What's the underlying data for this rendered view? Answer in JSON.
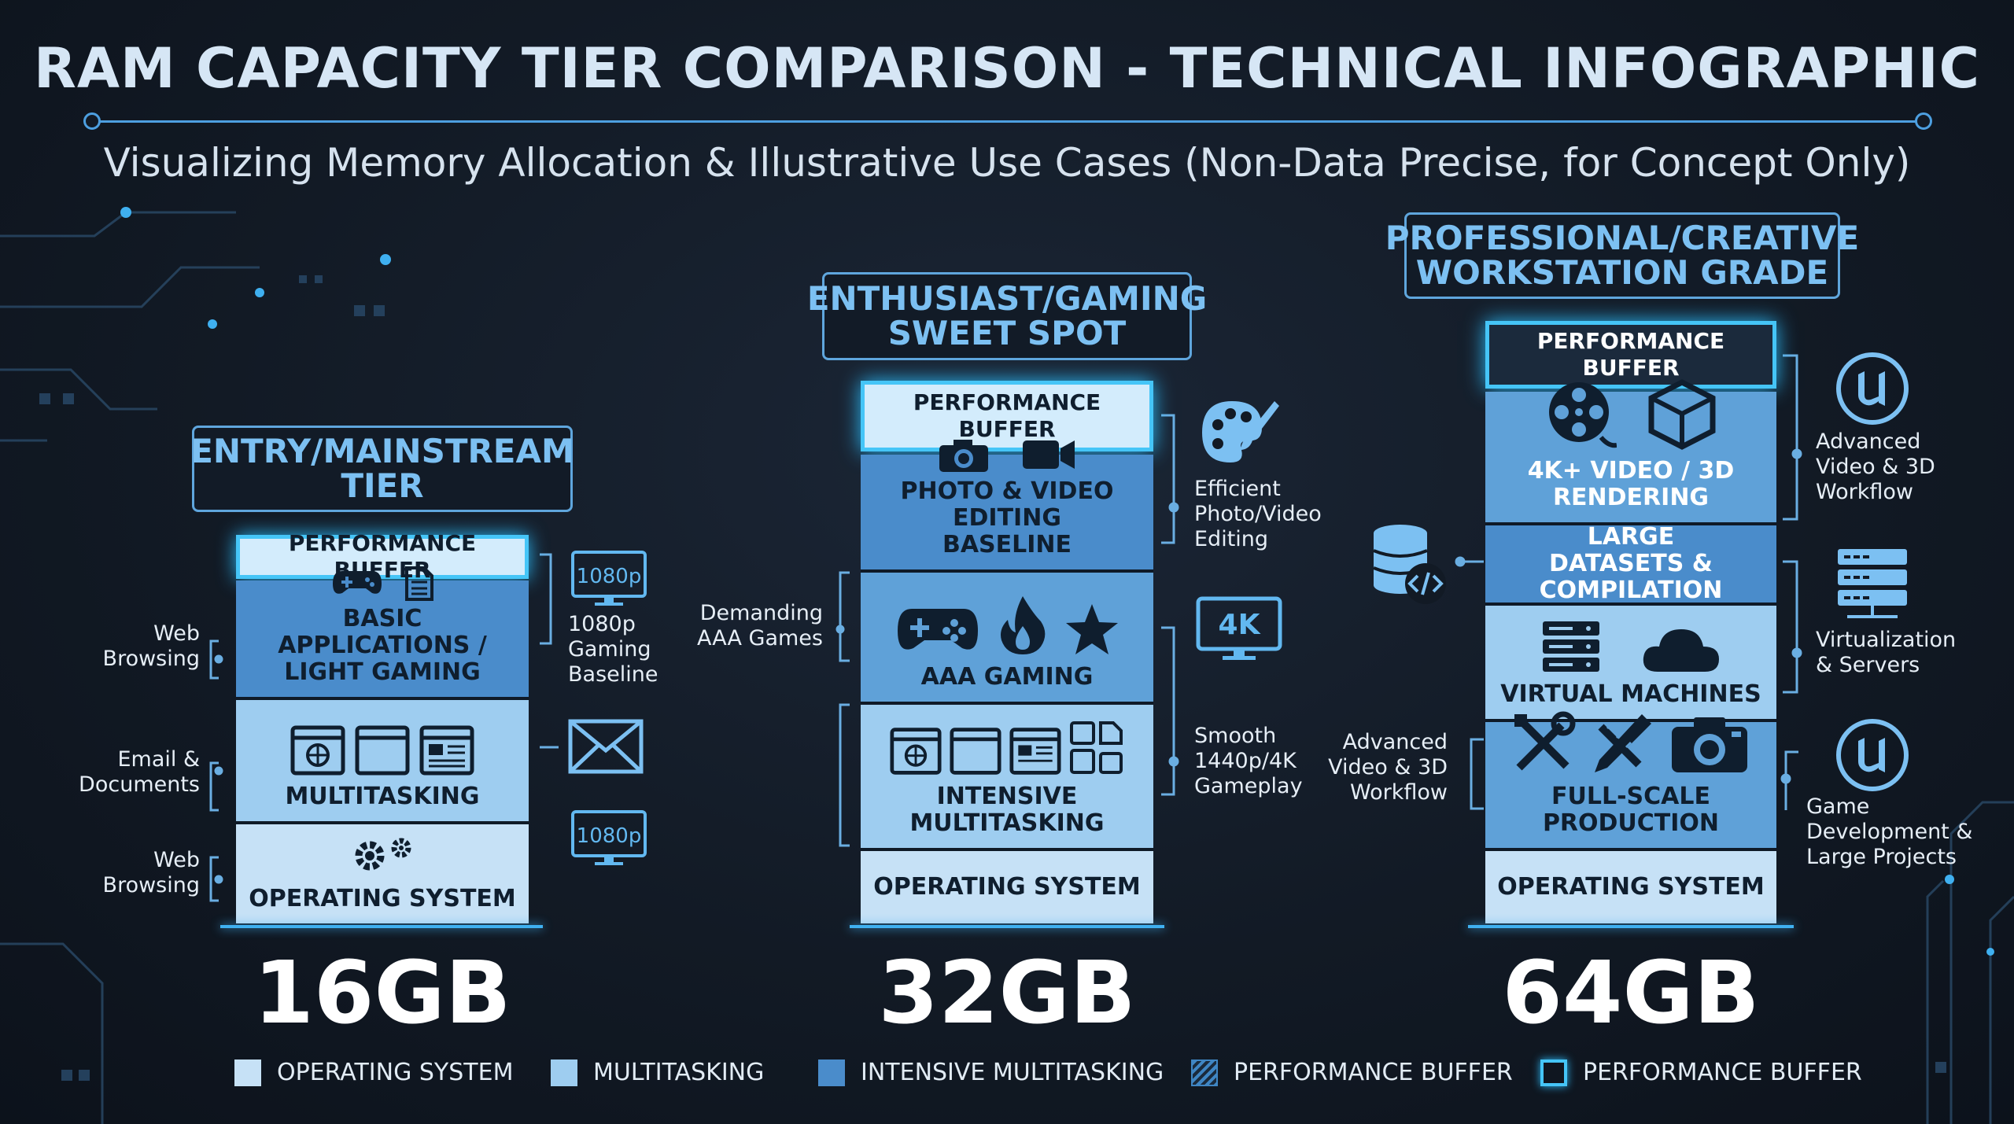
{
  "title": "RAM CAPACITY TIER COMPARISON - TECHNICAL INFOGRAPHIC",
  "subtitle": "Visualizing Memory Allocation & Illustrative Use Cases (Non-Data Precise, for Concept Only)",
  "colors": {
    "accent": "#45c5f7",
    "os": "#c6e1f6",
    "multitasking": "#9ecdf0",
    "intensive": "#5fa1d8",
    "background": "#121a25"
  },
  "tiers": [
    {
      "label": "ENTRY/MAINSTREAM TIER",
      "capacity": "16GB",
      "segments": {
        "buffer": "PERFORMANCE BUFFER",
        "apps": "BASIC APPLICATIONS / LIGHT GAMING",
        "multitasking": "MULTITASKING",
        "os": "OPERATING SYSTEM"
      },
      "left_notes": [
        "Web Browsing",
        "Email & Documents",
        "Web Browsing"
      ],
      "right_notes": [
        "1080p Gaming Baseline"
      ],
      "badges": [
        "1080p",
        "1080p"
      ]
    },
    {
      "label": "ENTHUSIAST/GAMING SWEET SPOT",
      "capacity": "32GB",
      "segments": {
        "buffer": "PERFORMANCE BUFFER",
        "editing": "PHOTO & VIDEO EDITING BASELINE",
        "gaming": "AAA GAMING",
        "intensive": "INTENSIVE MULTITASKING",
        "os": "OPERATING SYSTEM"
      },
      "left_notes": [
        "Demanding AAA Games"
      ],
      "right_notes": [
        "Efficient Photo/Video Editing",
        "Smooth 1440p/4K Gameplay"
      ],
      "badges": [
        "4K"
      ]
    },
    {
      "label": "PROFESSIONAL/CREATIVE WORKSTATION GRADE",
      "capacity": "64GB",
      "segments": {
        "buffer": "PERFORMANCE BUFFER",
        "video": "4K+ VIDEO / 3D RENDERING",
        "datasets": "LARGE DATASETS & COMPILATION",
        "vms": "VIRTUAL MACHINES",
        "production": "FULL-SCALE PRODUCTION",
        "os": "OPERATING SYSTEM"
      },
      "left_notes": [
        "Advanced Video & 3D Workflow"
      ],
      "right_notes": [
        "Advanced Video & 3D Workflow",
        "Virtualization & Servers",
        "Game Development & Large Projects"
      ]
    }
  ],
  "legend": [
    {
      "label": "OPERATING SYSTEM",
      "style": "os"
    },
    {
      "label": "MULTITASKING",
      "style": "multitasking"
    },
    {
      "label": "INTENSIVE MULTITASKING",
      "style": "intensive"
    },
    {
      "label": "PERFORMANCE BUFFER",
      "style": "hatched"
    },
    {
      "label": "PERFORMANCE BUFFER",
      "style": "outline"
    }
  ]
}
